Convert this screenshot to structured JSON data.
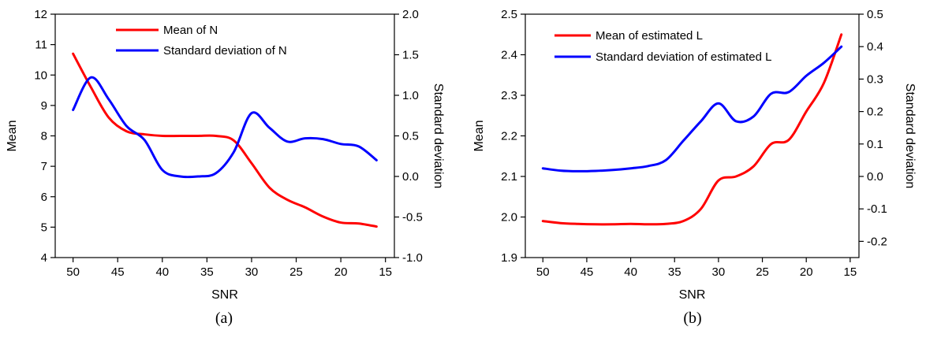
{
  "chart_data": [
    {
      "type": "line",
      "caption": "(a)",
      "xlabel": "SNR",
      "ylabel_left": "Mean",
      "ylabel_right": "Standard deviation",
      "xlim": [
        52,
        14
      ],
      "ylim_left": [
        4,
        12
      ],
      "ylim_right": [
        -1.0,
        2.0
      ],
      "xticks": [
        "50",
        "45",
        "40",
        "35",
        "30",
        "25",
        "20",
        "15"
      ],
      "yticks_left": [
        "4",
        "5",
        "6",
        "7",
        "8",
        "9",
        "10",
        "11",
        "12"
      ],
      "yticks_right": [
        "-1.0",
        "-0.5",
        "0.0",
        "0.5",
        "1.0",
        "1.5",
        "2.0"
      ],
      "grid": false,
      "legend_position": "top",
      "series": [
        {
          "name": "Mean of N",
          "axis": "left",
          "color": "#ff0000",
          "x": [
            50,
            48,
            46,
            44,
            42,
            40,
            38,
            36,
            34,
            32,
            30,
            28,
            26,
            24,
            22,
            20,
            18,
            16
          ],
          "y": [
            10.7,
            9.6,
            8.6,
            8.15,
            8.05,
            8.0,
            8.0,
            8.0,
            8.0,
            7.85,
            7.1,
            6.3,
            5.9,
            5.65,
            5.35,
            5.15,
            5.12,
            5.02
          ]
        },
        {
          "name": "Standard deviation of N",
          "axis": "right",
          "color": "#0000ff",
          "x": [
            50,
            48,
            46,
            44,
            42,
            40,
            38,
            36,
            34,
            32,
            30,
            28,
            26,
            24,
            22,
            20,
            18,
            16
          ],
          "y": [
            0.82,
            1.22,
            0.95,
            0.62,
            0.45,
            0.08,
            0.0,
            0.0,
            0.04,
            0.3,
            0.78,
            0.6,
            0.43,
            0.47,
            0.46,
            0.4,
            0.37,
            0.2
          ]
        }
      ]
    },
    {
      "type": "line",
      "caption": "(b)",
      "xlabel": "SNR",
      "ylabel_left": "Mean",
      "ylabel_right": "Standard deviation",
      "xlim": [
        52,
        14
      ],
      "ylim_left": [
        1.9,
        2.5
      ],
      "ylim_right": [
        -0.25,
        0.5
      ],
      "xticks": [
        "50",
        "45",
        "40",
        "35",
        "30",
        "25",
        "20",
        "15"
      ],
      "yticks_left": [
        "1.9",
        "2.0",
        "2.1",
        "2.2",
        "2.3",
        "2.4",
        "2.5"
      ],
      "yticks_right": [
        "-0.2",
        "-0.1",
        "0.0",
        "0.1",
        "0.2",
        "0.3",
        "0.4",
        "0.5"
      ],
      "grid": false,
      "legend_position": "top",
      "series": [
        {
          "name": "Mean of estimated L",
          "axis": "left",
          "color": "#ff0000",
          "x": [
            50,
            48,
            46,
            44,
            42,
            40,
            38,
            36,
            34,
            32,
            30,
            28,
            26,
            24,
            22,
            20,
            18,
            16
          ],
          "y": [
            1.99,
            1.985,
            1.983,
            1.982,
            1.982,
            1.983,
            1.982,
            1.983,
            1.99,
            2.02,
            2.09,
            2.1,
            2.125,
            2.18,
            2.19,
            2.26,
            2.33,
            2.45
          ]
        },
        {
          "name": "Standard deviation of estimated L",
          "axis": "right",
          "color": "#0000ff",
          "x": [
            50,
            48,
            46,
            44,
            42,
            40,
            38,
            36,
            34,
            32,
            30,
            28,
            26,
            24,
            22,
            20,
            18,
            16
          ],
          "y": [
            0.025,
            0.018,
            0.016,
            0.017,
            0.02,
            0.025,
            0.032,
            0.05,
            0.11,
            0.17,
            0.225,
            0.17,
            0.185,
            0.255,
            0.26,
            0.31,
            0.35,
            0.4
          ]
        }
      ]
    }
  ]
}
